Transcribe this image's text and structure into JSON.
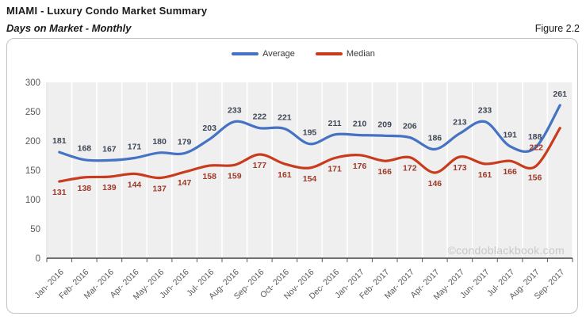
{
  "header": {
    "title": "MIAMI - Luxury Condo Market Summary",
    "subtitle": "Days on Market - Monthly",
    "figure_label": "Figure 2.2"
  },
  "watermark": "©condoblackbook.com",
  "chart_data": {
    "type": "line",
    "smoothed": true,
    "title": "Days on Market - Monthly",
    "categories": [
      "Jan- 2016",
      "Feb- 2016",
      "Mar- 2016",
      "Apr- 2016",
      "May- 2016",
      "Jun- 2016",
      "Jul- 2016",
      "Aug- 2016",
      "Sep- 2016",
      "Oct- 2016",
      "Nov- 2016",
      "Dec- 2016",
      "Jan- 2017",
      "Feb- 2017",
      "Mar- 2017",
      "Apr- 2017",
      "May- 2017",
      "Jun- 2017",
      "Jul- 2017",
      "Aug- 2017",
      "Sep- 2017"
    ],
    "series": [
      {
        "name": "Average",
        "color": "#4472C4",
        "label_color": "#3F4757",
        "values": [
          181,
          168,
          167,
          171,
          180,
          179,
          203,
          233,
          222,
          221,
          195,
          211,
          210,
          209,
          206,
          186,
          213,
          233,
          191,
          188,
          261
        ]
      },
      {
        "name": "Median",
        "color": "#C93B1D",
        "label_color": "#9E3928",
        "values": [
          131,
          138,
          139,
          144,
          137,
          147,
          158,
          159,
          177,
          161,
          154,
          171,
          176,
          166,
          172,
          146,
          173,
          161,
          166,
          156,
          222
        ]
      }
    ],
    "ylim": [
      0,
      300
    ],
    "yticks": [
      0,
      50,
      100,
      150,
      200,
      250,
      300
    ],
    "grid": "vertical-only",
    "legend_position": "top-center",
    "data_labels": true,
    "colors": {
      "plot_bg": "#EFEFEF",
      "gridline": "#FFFFFF",
      "axis": "#404040",
      "tick_label": "#595959",
      "watermark": "#C8C8C8"
    }
  }
}
